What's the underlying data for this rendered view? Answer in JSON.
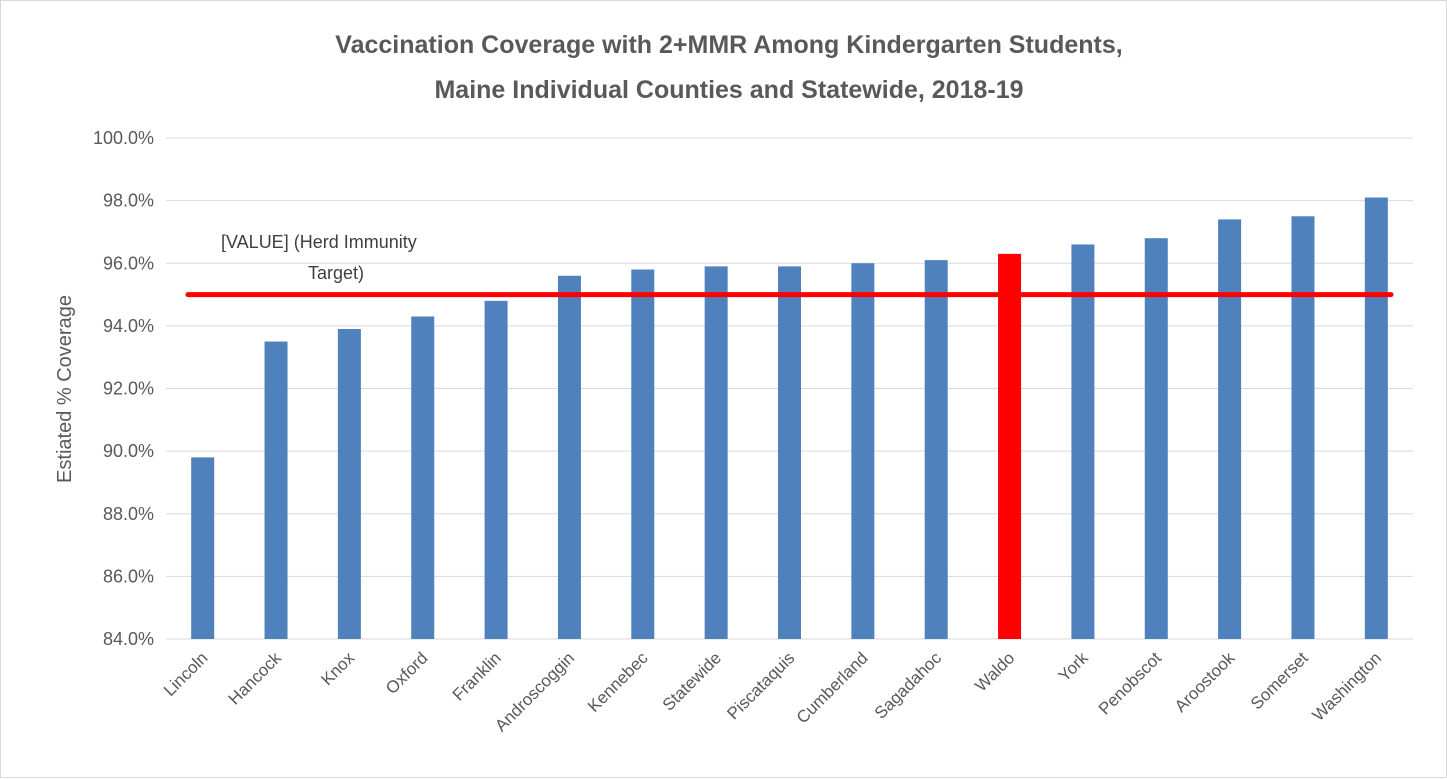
{
  "chart_data": {
    "type": "bar",
    "title_lines": [
      "Vaccination Coverage with 2+MMR Among Kindergarten Students,",
      "Maine Individual Counties and Statewide, 2018-19"
    ],
    "ylabel": "Estiated % Coverage",
    "xlabel": "",
    "ylim": [
      84.0,
      100.0
    ],
    "yticks": [
      "100.0%",
      "98.0%",
      "96.0%",
      "94.0%",
      "92.0%",
      "90.0%",
      "88.0%",
      "86.0%",
      "84.0%"
    ],
    "ytick_values": [
      100,
      98,
      96,
      94,
      92,
      90,
      88,
      86,
      84
    ],
    "grid": true,
    "categories": [
      "Lincoln",
      "Hancock",
      "Knox",
      "Oxford",
      "Franklin",
      "Androscoggin",
      "Kennebec",
      "Statewide",
      "Piscataquis",
      "Cumberland",
      "Sagadahoc",
      "Waldo",
      "York",
      "Penobscot",
      "Aroostook",
      "Somerset",
      "Washington"
    ],
    "values": [
      89.8,
      93.5,
      93.9,
      94.3,
      94.8,
      95.6,
      95.8,
      95.9,
      95.9,
      96.0,
      96.1,
      96.3,
      96.6,
      96.8,
      97.4,
      97.5,
      98.1
    ],
    "bar_color": "#4f81bd",
    "highlight_color": "#ff0000",
    "highlight_category": "Waldo",
    "reference_line": {
      "value": 95.0,
      "color": "#ff0000",
      "label_lines": [
        "[VALUE] (Herd Immunity",
        "Target)"
      ]
    }
  }
}
